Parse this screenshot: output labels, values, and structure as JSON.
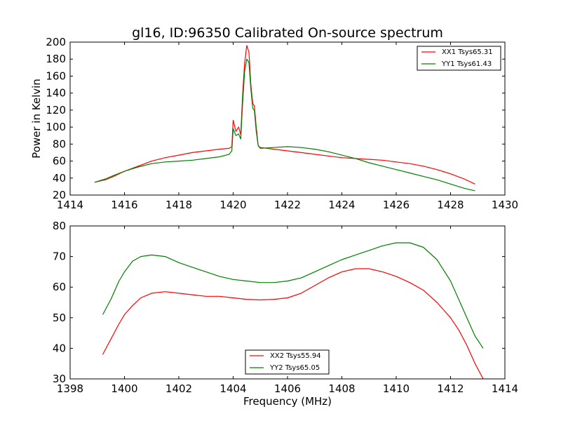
{
  "chart_data": [
    {
      "type": "line",
      "title": "gl16, ID:96350 Calibrated On-source spectrum",
      "xlabel": "",
      "ylabel": "Power in Kelvin",
      "xlim": [
        1414,
        1430
      ],
      "ylim": [
        20,
        200
      ],
      "xticks": [
        1414,
        1416,
        1418,
        1420,
        1422,
        1424,
        1426,
        1428,
        1430
      ],
      "yticks": [
        20,
        40,
        60,
        80,
        100,
        120,
        140,
        160,
        180,
        200
      ],
      "xtick_labels": [
        "1414",
        "1416",
        "1418",
        "1420",
        "1422",
        "1424",
        "1426",
        "1428",
        "1430"
      ],
      "ytick_labels": [
        "20",
        "40",
        "60",
        "80",
        "100",
        "120",
        "140",
        "160",
        "180",
        "200"
      ],
      "legend_position": "top-right",
      "series": [
        {
          "name": "XX1 Tsys65.31",
          "color": "#ff0000",
          "x": [
            1414.9,
            1415.3,
            1415.6,
            1416.0,
            1416.5,
            1417.0,
            1417.5,
            1418.0,
            1418.5,
            1419.0,
            1419.5,
            1419.85,
            1419.95,
            1420.0,
            1420.1,
            1420.2,
            1420.28,
            1420.35,
            1420.42,
            1420.5,
            1420.58,
            1420.65,
            1420.72,
            1420.78,
            1420.85,
            1420.92,
            1421.0,
            1421.5,
            1422.0,
            1422.5,
            1423.0,
            1423.5,
            1424.0,
            1424.5,
            1425.0,
            1425.5,
            1426.0,
            1426.5,
            1427.0,
            1427.5,
            1428.0,
            1428.5,
            1428.9
          ],
          "y": [
            35,
            38,
            42,
            48,
            54,
            60,
            64,
            67,
            70,
            72,
            74,
            75,
            77,
            108,
            95,
            100,
            91,
            140,
            175,
            196,
            188,
            150,
            128,
            125,
            100,
            78,
            76,
            74,
            72,
            70,
            68,
            66,
            64,
            63,
            62,
            61,
            59,
            57,
            54,
            50,
            45,
            39,
            33
          ]
        },
        {
          "name": "YY1 Tsys61.43",
          "color": "#008000",
          "x": [
            1414.9,
            1415.3,
            1415.6,
            1416.0,
            1416.5,
            1417.0,
            1417.5,
            1418.0,
            1418.5,
            1419.0,
            1419.5,
            1419.85,
            1419.95,
            1420.0,
            1420.1,
            1420.2,
            1420.28,
            1420.35,
            1420.42,
            1420.5,
            1420.58,
            1420.65,
            1420.72,
            1420.78,
            1420.85,
            1420.92,
            1421.0,
            1421.5,
            1422.0,
            1422.5,
            1423.0,
            1423.5,
            1424.0,
            1424.5,
            1425.0,
            1425.5,
            1426.0,
            1426.5,
            1427.0,
            1427.5,
            1428.0,
            1428.5,
            1428.9
          ],
          "y": [
            35,
            39,
            43,
            48,
            53,
            57,
            59,
            60,
            61,
            63,
            65,
            68,
            72,
            98,
            90,
            92,
            86,
            130,
            165,
            180,
            176,
            145,
            122,
            120,
            95,
            78,
            75,
            76,
            77,
            76,
            74,
            71,
            67,
            63,
            58,
            54,
            50,
            46,
            42,
            38,
            33,
            28,
            25
          ]
        }
      ]
    },
    {
      "type": "line",
      "title": "",
      "xlabel": "Frequency (MHz)",
      "ylabel": "",
      "xlim": [
        1398,
        1414
      ],
      "ylim": [
        30,
        80
      ],
      "xticks": [
        1398,
        1400,
        1402,
        1404,
        1406,
        1408,
        1410,
        1412,
        1414
      ],
      "yticks": [
        30,
        40,
        50,
        60,
        70,
        80
      ],
      "xtick_labels": [
        "1398",
        "1400",
        "1402",
        "1404",
        "1406",
        "1408",
        "1410",
        "1412",
        "1414"
      ],
      "ytick_labels": [
        "30",
        "40",
        "50",
        "60",
        "70",
        "80"
      ],
      "legend_position": "bottom-center",
      "series": [
        {
          "name": "XX2 Tsys55.94",
          "color": "#ff0000",
          "x": [
            1399.2,
            1399.5,
            1399.8,
            1400.0,
            1400.3,
            1400.6,
            1401.0,
            1401.5,
            1402.0,
            1402.5,
            1403.0,
            1403.5,
            1404.0,
            1404.5,
            1405.0,
            1405.5,
            1406.0,
            1406.5,
            1407.0,
            1407.5,
            1408.0,
            1408.5,
            1409.0,
            1409.5,
            1410.0,
            1410.5,
            1411.0,
            1411.5,
            1412.0,
            1412.3,
            1412.6,
            1412.9,
            1413.2
          ],
          "y": [
            38,
            43,
            48,
            51,
            54,
            56.5,
            58,
            58.5,
            58,
            57.5,
            57,
            57,
            56.5,
            56,
            55.8,
            56,
            56.5,
            58,
            60.5,
            63,
            65,
            66,
            66,
            65,
            63.5,
            61.5,
            59,
            55,
            50,
            46,
            41,
            35,
            30
          ]
        },
        {
          "name": "YY2 Tsys65.05",
          "color": "#008000",
          "x": [
            1399.2,
            1399.5,
            1399.8,
            1400.0,
            1400.3,
            1400.6,
            1401.0,
            1401.5,
            1402.0,
            1402.5,
            1403.0,
            1403.5,
            1404.0,
            1404.5,
            1405.0,
            1405.5,
            1406.0,
            1406.5,
            1407.0,
            1407.5,
            1408.0,
            1408.5,
            1409.0,
            1409.5,
            1410.0,
            1410.5,
            1411.0,
            1411.5,
            1412.0,
            1412.3,
            1412.6,
            1412.9,
            1413.2
          ],
          "y": [
            51,
            56,
            62,
            65,
            68.5,
            70,
            70.5,
            70,
            68,
            66.5,
            65,
            63.5,
            62.5,
            62,
            61.5,
            61.5,
            62,
            63,
            65,
            67,
            69,
            70.5,
            72,
            73.5,
            74.5,
            74.5,
            73,
            69,
            62,
            56,
            50,
            44,
            40
          ]
        }
      ]
    }
  ]
}
